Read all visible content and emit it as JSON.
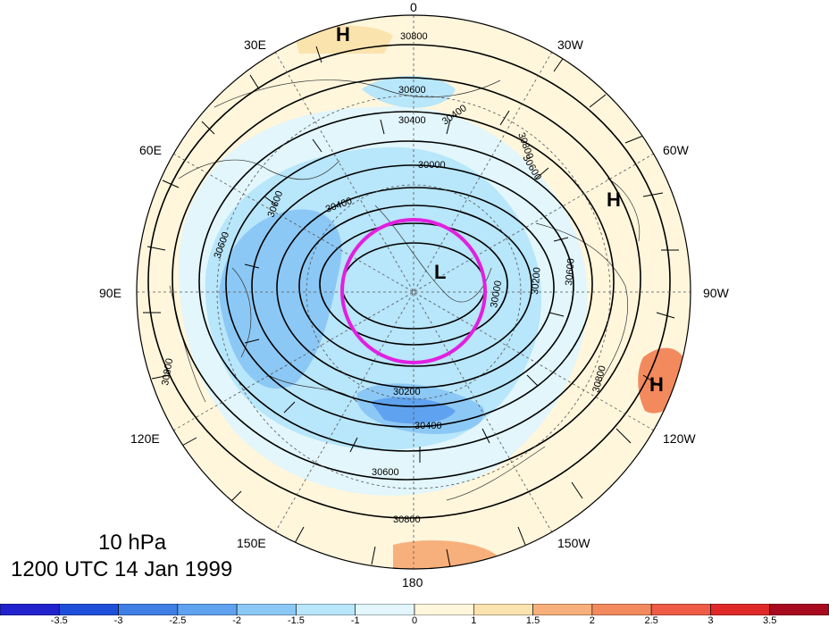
{
  "map": {
    "level": "10 hPa",
    "valid_time": "1200 UTC 14 Jan 1999",
    "longitude_labels": {
      "top": "0",
      "top_right": "30W",
      "right_upper": "60W",
      "right": "90W",
      "right_lower": "120W",
      "bottom_right": "150W",
      "bottom": "180",
      "bottom_left": "150E",
      "left_lower": "120E",
      "left": "90E",
      "left_upper": "60E",
      "top_left": "30E"
    },
    "pressure_centers": [
      {
        "id": "high-north",
        "label": "H"
      },
      {
        "id": "high-west",
        "label": "H"
      },
      {
        "id": "high-east",
        "label": "H"
      },
      {
        "id": "low-center",
        "label": "L"
      }
    ],
    "contour_labels": [
      "30800",
      "30600",
      "30400",
      "30400",
      "30000",
      "30800",
      "30600",
      "30400",
      "30600",
      "30200",
      "30400",
      "30600",
      "30800",
      "30800",
      "30800",
      "30600",
      "30200",
      "30000",
      "30600"
    ],
    "colors": {
      "highlight_circle": "#e020e0",
      "land_outline": "#222222",
      "contour": "#000000"
    }
  },
  "colorbar": {
    "ticks": [
      "-3.5",
      "-3",
      "-2.5",
      "-2",
      "-1.5",
      "-1",
      "0",
      "1",
      "1.5",
      "2",
      "2.5",
      "3",
      "3.5"
    ],
    "colors": [
      "#2222cc",
      "#1f4fd8",
      "#3f7fe6",
      "#5fa2ef",
      "#8cc8f5",
      "#b8e6fa",
      "#e2f6fb",
      "#fff6dc",
      "#fbe3ae",
      "#f7b07c",
      "#f28a5e",
      "#ee5c47",
      "#e02a2a",
      "#a80a20"
    ]
  }
}
